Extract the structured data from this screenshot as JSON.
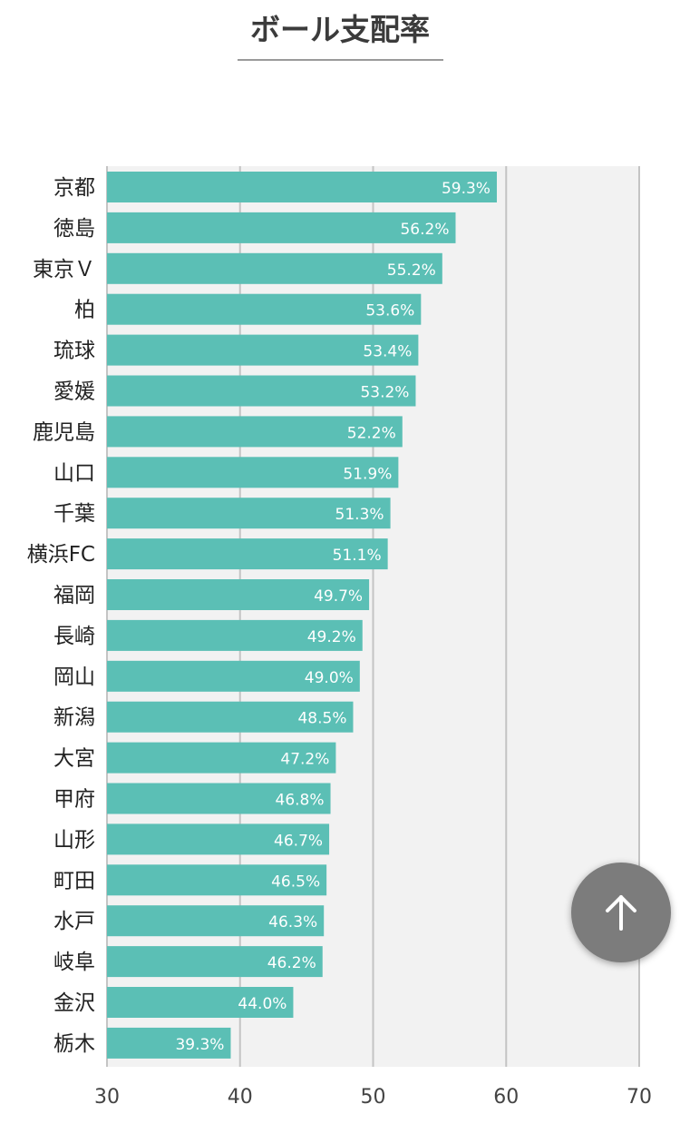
{
  "page": {
    "title": "ボール支配率"
  },
  "scroll_top": {
    "icon": "arrow-up-icon"
  },
  "chart_data": {
    "type": "bar",
    "orientation": "horizontal",
    "title": "ボール支配率",
    "xlabel": "",
    "ylabel": "",
    "xlim": [
      30,
      70
    ],
    "ticks": [
      30,
      40,
      50,
      60,
      70
    ],
    "grid": true,
    "value_suffix": "%",
    "bar_color": "#5bbfb5",
    "background_color": "#f2f2f2",
    "categories": [
      "京都",
      "徳島",
      "東京Ｖ",
      "柏",
      "琉球",
      "愛媛",
      "鹿児島",
      "山口",
      "千葉",
      "横浜FC",
      "福岡",
      "長崎",
      "岡山",
      "新潟",
      "大宮",
      "甲府",
      "山形",
      "町田",
      "水戸",
      "岐阜",
      "金沢",
      "栃木"
    ],
    "values": [
      59.3,
      56.2,
      55.2,
      53.6,
      53.4,
      53.2,
      52.2,
      51.9,
      51.3,
      51.1,
      49.7,
      49.2,
      49.0,
      48.5,
      47.2,
      46.8,
      46.7,
      46.5,
      46.3,
      46.2,
      44.0,
      39.3
    ]
  }
}
